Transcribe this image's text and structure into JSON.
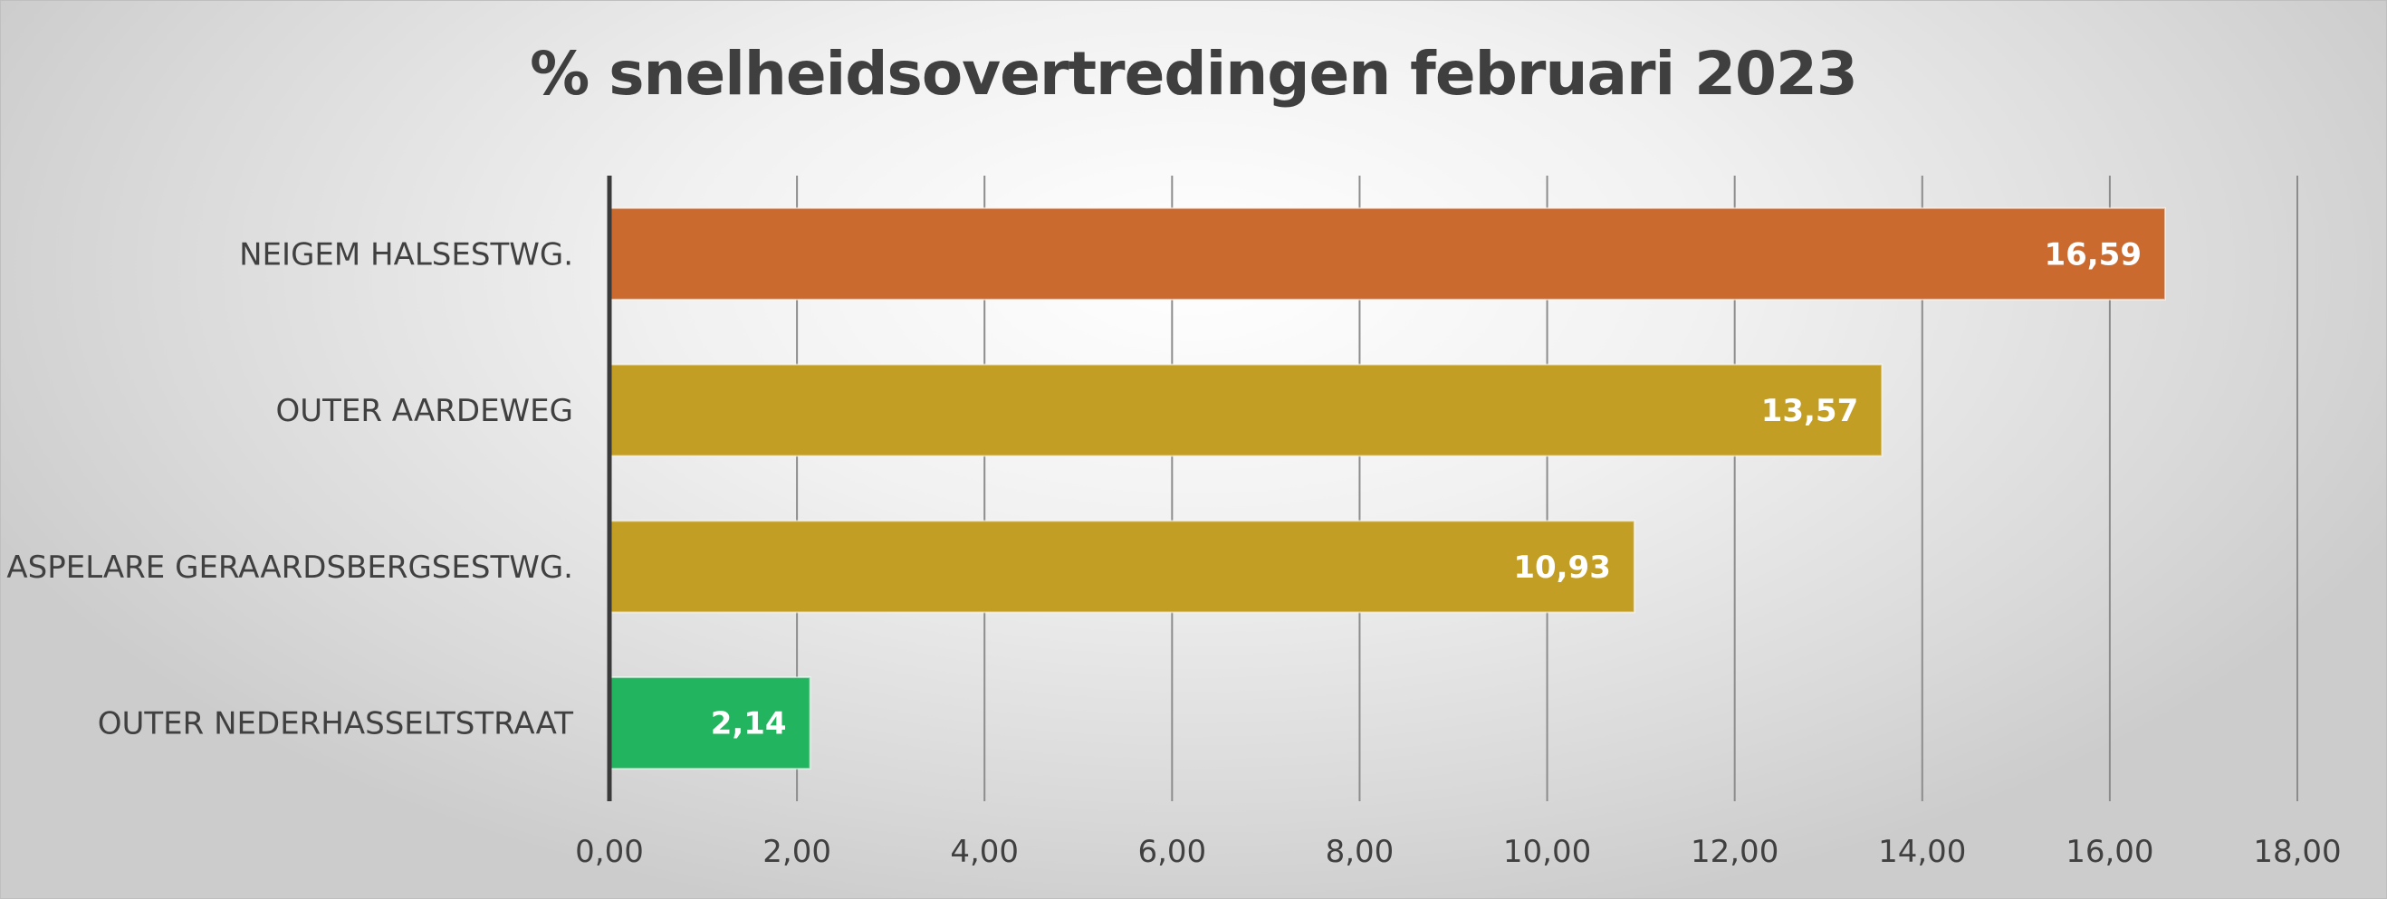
{
  "chart_data": {
    "type": "bar",
    "orientation": "horizontal",
    "title": "% snelheidsovertredingen februari 2023",
    "categories": [
      "NEIGEM HALSESTWG.",
      "OUTER AARDEWEG",
      "ASPELARE GERAARDSBERGSESTWG.",
      "OUTER NEDERHASSELTSTRAAT"
    ],
    "values": [
      16.59,
      13.57,
      10.93,
      2.14
    ],
    "value_labels": [
      "16,59",
      "13,57",
      "10,93",
      "2,14"
    ],
    "bar_colors": [
      "#cb6a2e",
      "#c39e24",
      "#c39e24",
      "#22b45e"
    ],
    "xlim": [
      0,
      18
    ],
    "x_ticks": [
      0,
      2,
      4,
      6,
      8,
      10,
      12,
      14,
      16,
      18
    ],
    "x_tick_labels": [
      "0,00",
      "2,00",
      "4,00",
      "6,00",
      "8,00",
      "10,00",
      "12,00",
      "14,00",
      "16,00",
      "18,00"
    ],
    "xlabel": "",
    "ylabel": "",
    "grid": "vertical",
    "legend": "none",
    "colors": {
      "gridline": "#8c8c8c",
      "axis": "#3a3a3a",
      "text": "#404040"
    }
  }
}
